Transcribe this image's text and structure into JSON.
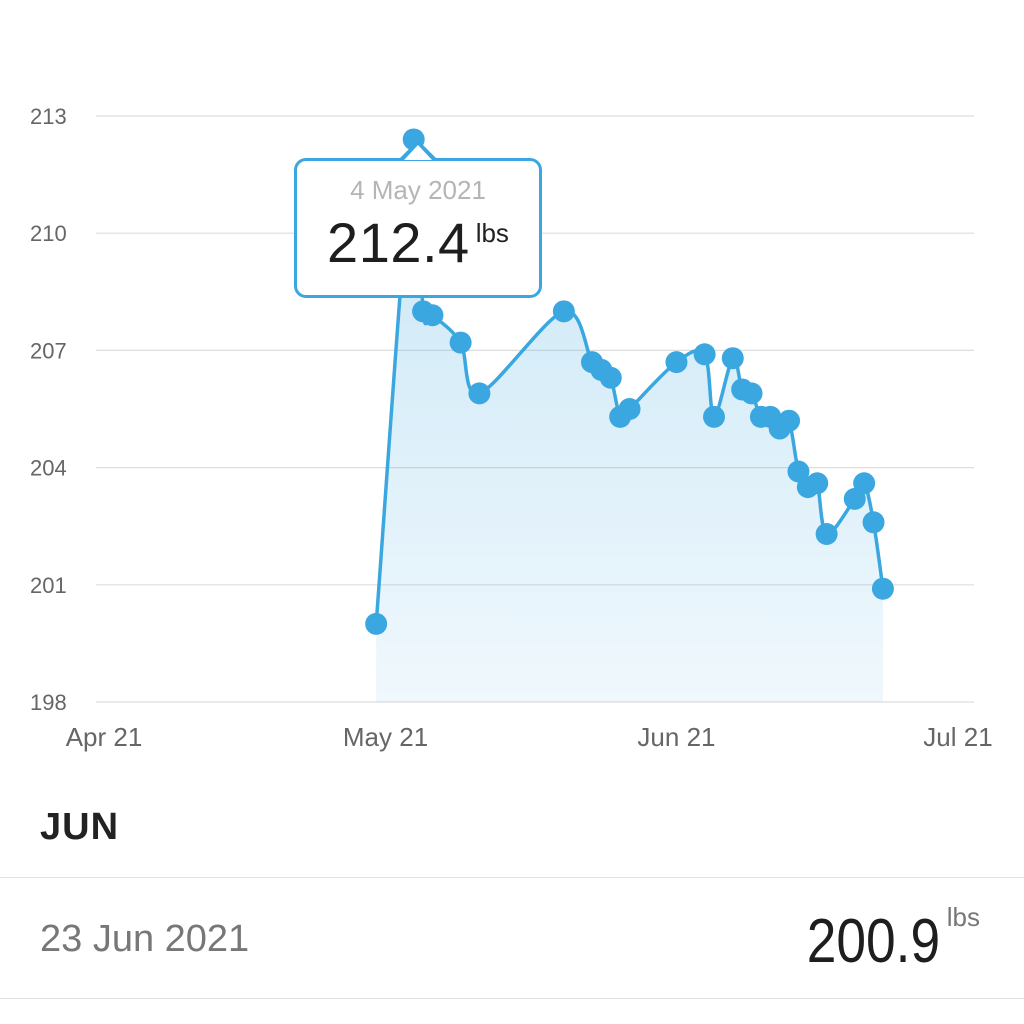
{
  "chart_data": {
    "type": "area",
    "title": "",
    "xlabel": "",
    "ylabel": "",
    "ylim": [
      198,
      213
    ],
    "yticks": [
      "213",
      "210",
      "207",
      "204",
      "201",
      "198"
    ],
    "xticks": [
      "Apr 21",
      "May 21",
      "Jun 21",
      "Jul 21"
    ],
    "xlim": [
      "2021-04-01",
      "2021-07-01"
    ],
    "grid": true,
    "series": [
      {
        "color": "#3ba7e0",
        "points": [
          {
            "x": "2021-04-30",
            "y": 200.0
          },
          {
            "x": "2021-05-04",
            "y": 212.4
          },
          {
            "x": "2021-05-05",
            "y": 208.0
          },
          {
            "x": "2021-05-06",
            "y": 207.9
          },
          {
            "x": "2021-05-09",
            "y": 207.2
          },
          {
            "x": "2021-05-11",
            "y": 205.9
          },
          {
            "x": "2021-05-20",
            "y": 208.0
          },
          {
            "x": "2021-05-23",
            "y": 206.7
          },
          {
            "x": "2021-05-24",
            "y": 206.5
          },
          {
            "x": "2021-05-25",
            "y": 206.3
          },
          {
            "x": "2021-05-26",
            "y": 205.3
          },
          {
            "x": "2021-05-27",
            "y": 205.5
          },
          {
            "x": "2021-06-01",
            "y": 206.7
          },
          {
            "x": "2021-06-04",
            "y": 206.9
          },
          {
            "x": "2021-06-05",
            "y": 205.3
          },
          {
            "x": "2021-06-07",
            "y": 206.8
          },
          {
            "x": "2021-06-08",
            "y": 206.0
          },
          {
            "x": "2021-06-09",
            "y": 205.9
          },
          {
            "x": "2021-06-10",
            "y": 205.3
          },
          {
            "x": "2021-06-11",
            "y": 205.3
          },
          {
            "x": "2021-06-12",
            "y": 205.0
          },
          {
            "x": "2021-06-13",
            "y": 205.2
          },
          {
            "x": "2021-06-14",
            "y": 203.9
          },
          {
            "x": "2021-06-15",
            "y": 203.5
          },
          {
            "x": "2021-06-16",
            "y": 203.6
          },
          {
            "x": "2021-06-17",
            "y": 202.3
          },
          {
            "x": "2021-06-20",
            "y": 203.2
          },
          {
            "x": "2021-06-21",
            "y": 203.6
          },
          {
            "x": "2021-06-22",
            "y": 202.6
          },
          {
            "x": "2021-06-23",
            "y": 200.9
          }
        ]
      }
    ]
  },
  "tooltip": {
    "date": "4 May 2021",
    "value": "212.4",
    "unit": "lbs"
  },
  "section": {
    "heading": "JUN"
  },
  "entry": {
    "date": "23 Jun 2021",
    "value": "200.9",
    "unit": "lbs"
  }
}
